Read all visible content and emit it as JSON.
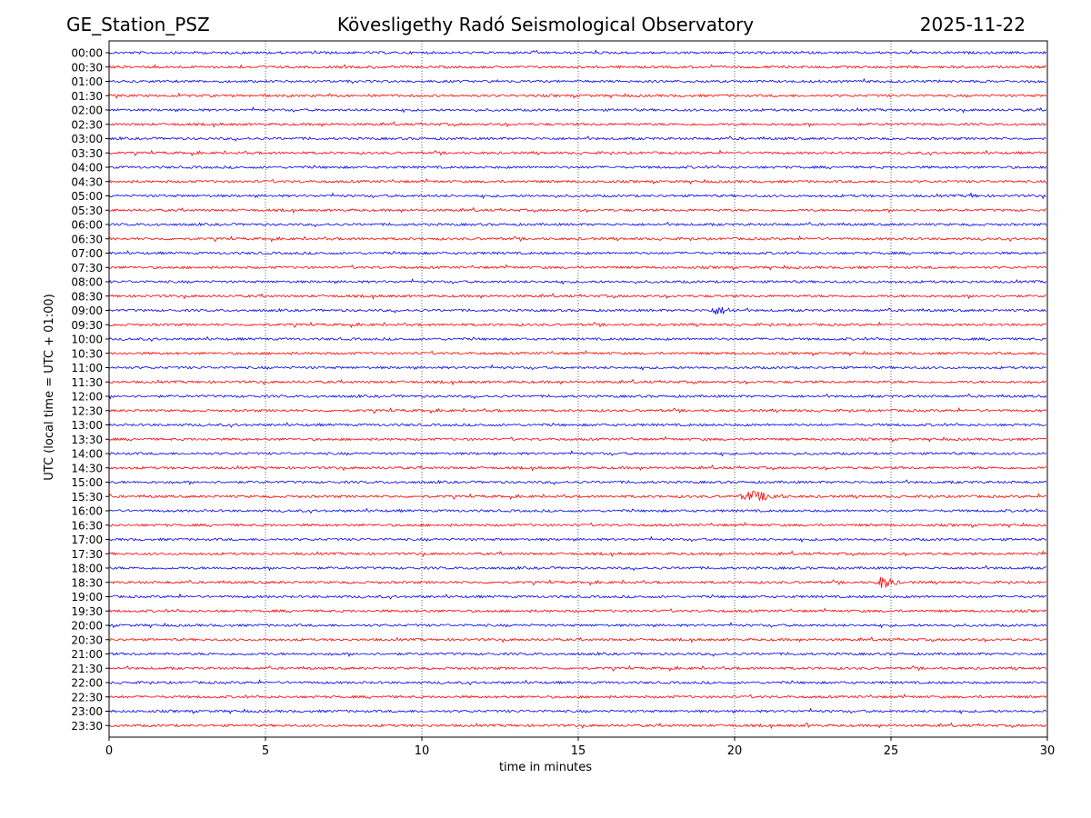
{
  "header": {
    "station": "GE_Station_PSZ",
    "observatory": "Kövesligethy Radó Seismological Observatory",
    "date": "2025-11-22"
  },
  "colors": {
    "even_row": "#0000ee",
    "odd_row": "#ff0000",
    "grid": "#000000"
  },
  "chart_data": {
    "type": "line",
    "title": "Kövesligethy Radó Seismological Observatory",
    "xlabel": "time in minutes",
    "ylabel": "UTC (local time = UTC + 01:00)",
    "xlim": [
      0,
      30
    ],
    "x_ticks": [
      0,
      5,
      10,
      15,
      20,
      25,
      30
    ],
    "x_tick_labels": [
      "0",
      "5",
      "10",
      "15",
      "20",
      "25",
      "30"
    ],
    "grid_x": [
      5,
      10,
      15,
      20,
      25
    ],
    "row_labels": [
      "00:00",
      "00:30",
      "01:00",
      "01:30",
      "02:00",
      "02:30",
      "03:00",
      "03:30",
      "04:00",
      "04:30",
      "05:00",
      "05:30",
      "06:00",
      "06:30",
      "07:00",
      "07:30",
      "08:00",
      "08:30",
      "09:00",
      "09:30",
      "10:00",
      "10:30",
      "11:00",
      "11:30",
      "12:00",
      "12:30",
      "13:00",
      "13:30",
      "14:00",
      "14:30",
      "15:00",
      "15:30",
      "16:00",
      "16:30",
      "17:00",
      "17:30",
      "18:00",
      "18:30",
      "19:00",
      "19:30",
      "20:00",
      "20:30",
      "21:00",
      "21:30",
      "22:00",
      "22:30",
      "23:00",
      "23:30"
    ],
    "noise_amplitude": 1,
    "events": [
      {
        "row": "09:00",
        "start_min": 19.1,
        "end_min": 20.3,
        "peak_min": 19.4,
        "amplitude": 4
      },
      {
        "row": "15:30",
        "start_min": 20.0,
        "end_min": 21.8,
        "peak_min": 20.5,
        "amplitude": 5
      },
      {
        "row": "18:30",
        "start_min": 24.5,
        "end_min": 25.3,
        "peak_min": 24.7,
        "amplitude": 6
      },
      {
        "row": "05:00",
        "start_min": 27.4,
        "end_min": 27.8,
        "peak_min": 27.6,
        "amplitude": 3
      },
      {
        "row": "17:30",
        "start_min": 29.6,
        "end_min": 30.0,
        "peak_min": 29.8,
        "amplitude": 3
      },
      {
        "row": "23:30",
        "start_min": 22.2,
        "end_min": 22.4,
        "peak_min": 22.3,
        "amplitude": 3
      }
    ]
  }
}
